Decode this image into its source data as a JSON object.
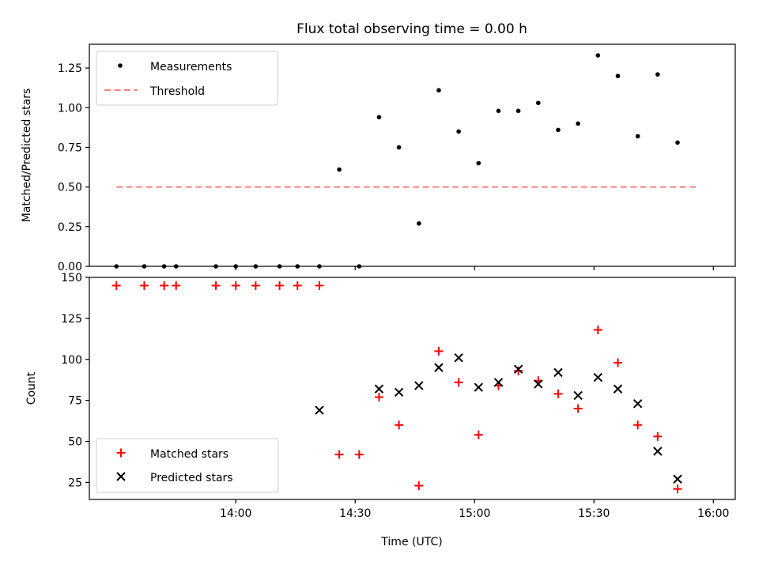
{
  "chart_data": [
    {
      "type": "scatter",
      "panel": "top",
      "title": "Flux total observing time = 0.00 h",
      "xlabel": "",
      "ylabel": "Matched/Predicted stars",
      "xlim": [
        13.3867,
        16.0917
      ],
      "ylim": [
        0,
        1.4
      ],
      "xticks": [
        14.0,
        14.5,
        15.0,
        15.5,
        16.0
      ],
      "xtick_labels_visible": false,
      "yticks": [
        0.0,
        0.25,
        0.5,
        0.75,
        1.0,
        1.25
      ],
      "ytick_labels": [
        "0.00",
        "0.25",
        "0.50",
        "0.75",
        "1.00",
        "1.25"
      ],
      "legend": {
        "position": "top-left",
        "entries": [
          "Measurements",
          "Threshold"
        ]
      },
      "series": [
        {
          "name": "Measurements",
          "style": "dot",
          "color": "#000000",
          "x": [
            13.5,
            13.6167,
            13.7,
            13.75,
            13.9167,
            14.0,
            14.0833,
            14.1833,
            14.2583,
            14.35,
            14.4333,
            14.5167,
            14.6,
            14.6833,
            14.7667,
            14.85,
            14.9333,
            15.0167,
            15.1,
            15.1833,
            15.2667,
            15.35,
            15.4333,
            15.5167,
            15.6,
            15.6833,
            15.7667,
            15.85,
            15.9333
          ],
          "y": [
            0.0,
            0.0,
            0.0,
            0.0,
            0.0,
            0.0,
            0.0,
            0.0,
            0.0,
            0.0,
            0.61,
            0.0,
            0.94,
            0.75,
            0.27,
            1.11,
            0.85,
            0.65,
            0.98,
            0.98,
            1.03,
            0.86,
            0.9,
            1.33,
            1.2,
            0.82,
            1.21,
            0.78,
            null
          ]
        },
        {
          "name": "Threshold",
          "style": "dashed-line",
          "color": "#ff8080",
          "x": [
            13.5,
            15.9333
          ],
          "y": [
            0.5,
            0.5
          ]
        }
      ]
    },
    {
      "type": "scatter",
      "panel": "bottom",
      "title": "",
      "xlabel": "Time (UTC)",
      "ylabel": "Count",
      "xlim": [
        13.3867,
        16.0917
      ],
      "ylim": [
        14.6,
        150
      ],
      "xticks": [
        14.0,
        14.5,
        15.0,
        15.5,
        16.0
      ],
      "xtick_labels": [
        "14:00",
        "14:30",
        "15:00",
        "15:30",
        "16:00"
      ],
      "yticks": [
        25,
        50,
        75,
        100,
        125,
        150
      ],
      "ytick_labels": [
        "25",
        "50",
        "75",
        "100",
        "125",
        "150"
      ],
      "legend": {
        "position": "bottom-left",
        "entries": [
          "Matched stars",
          "Predicted stars"
        ]
      },
      "series": [
        {
          "name": "Matched stars",
          "marker": "plus",
          "color": "#ff0000",
          "x": [
            13.5,
            13.6167,
            13.7,
            13.75,
            13.9167,
            14.0,
            14.0833,
            14.1833,
            14.2583,
            14.35,
            14.4333,
            14.5167,
            14.6,
            14.6833,
            14.7667,
            14.85,
            14.9333,
            15.0167,
            15.1,
            15.1833,
            15.2667,
            15.35,
            15.4333,
            15.5167,
            15.6,
            15.6833,
            15.7667,
            15.85,
            15.9333
          ],
          "y": [
            145,
            145,
            145,
            145,
            145,
            145,
            145,
            145,
            145,
            145,
            42,
            42,
            77,
            60,
            23,
            105,
            86,
            54,
            84,
            93,
            87,
            79,
            70,
            118,
            98,
            60,
            53,
            21,
            null
          ]
        },
        {
          "name": "Predicted stars",
          "marker": "x",
          "color": "#000000",
          "x": [
            14.35,
            14.6,
            14.6833,
            14.7667,
            14.85,
            14.9333,
            15.0167,
            15.1,
            15.1833,
            15.2667,
            15.35,
            15.4333,
            15.5167,
            15.6,
            15.6833,
            15.7667,
            15.85
          ],
          "y": [
            69,
            82,
            80,
            84,
            95,
            101,
            83,
            86,
            94,
            85,
            92,
            78,
            89,
            82,
            73,
            44,
            27
          ]
        }
      ]
    }
  ]
}
